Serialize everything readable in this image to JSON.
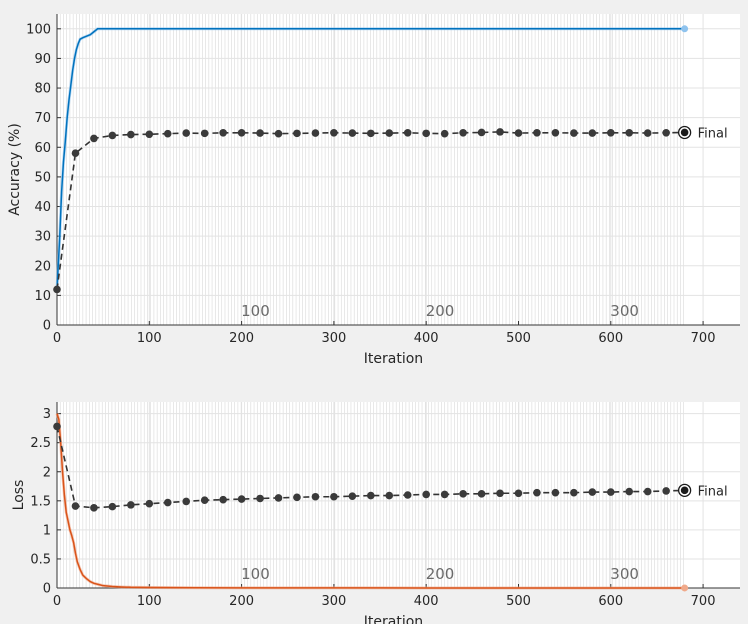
{
  "colors": {
    "accuracy": "#0072bd",
    "accuracy_light": "#8fc3ee",
    "loss": "#d95319",
    "loss_light": "#f0a98a",
    "validation": "#333333",
    "epoch_shade": "#d9d9d9"
  },
  "chart_data": [
    {
      "type": "line",
      "title": "",
      "xlabel": "Iteration",
      "ylabel": "Accuracy (%)",
      "xlim": [
        0,
        740
      ],
      "ylim": [
        0,
        105
      ],
      "grid": true,
      "xticks": [
        0,
        100,
        200,
        300,
        400,
        500,
        600,
        700
      ],
      "yticks": [
        0,
        10,
        20,
        30,
        40,
        50,
        60,
        70,
        80,
        90,
        100
      ],
      "epoch_labels": [
        {
          "x": 215,
          "text": "100"
        },
        {
          "x": 415,
          "text": "200"
        },
        {
          "x": 615,
          "text": "300"
        }
      ],
      "final_label": "Final",
      "series": [
        {
          "role": "training",
          "x": [
            0,
            3,
            5,
            7,
            9,
            11,
            13,
            15,
            17,
            19,
            21,
            23,
            25,
            28,
            32,
            36,
            40,
            44,
            50,
            100,
            200,
            300,
            400,
            500,
            600,
            680
          ],
          "y": [
            12,
            30,
            45,
            55,
            62,
            70,
            76,
            81,
            86,
            90,
            93,
            95,
            96.5,
            97,
            97.5,
            98,
            99,
            100,
            100,
            100,
            100,
            100,
            100,
            100,
            100,
            100
          ]
        },
        {
          "role": "validation",
          "x": [
            0,
            20,
            40,
            60,
            80,
            100,
            120,
            140,
            160,
            180,
            200,
            220,
            240,
            260,
            280,
            300,
            320,
            340,
            360,
            380,
            400,
            420,
            440,
            460,
            480,
            500,
            520,
            540,
            560,
            580,
            600,
            620,
            640,
            660,
            680
          ],
          "y": [
            12,
            58,
            63,
            64,
            64.3,
            64.4,
            64.6,
            64.8,
            64.7,
            64.9,
            64.9,
            64.8,
            64.6,
            64.7,
            64.8,
            64.9,
            64.8,
            64.7,
            64.8,
            64.9,
            64.7,
            64.6,
            64.9,
            65.0,
            65.2,
            64.8,
            64.9,
            64.9,
            64.8,
            64.8,
            64.9,
            64.9,
            64.8,
            64.9,
            65
          ]
        }
      ]
    },
    {
      "type": "line",
      "title": "",
      "xlabel": "Iteration",
      "ylabel": "Loss",
      "xlim": [
        0,
        740
      ],
      "ylim": [
        0,
        3.2
      ],
      "grid": true,
      "xticks": [
        0,
        100,
        200,
        300,
        400,
        500,
        600,
        700
      ],
      "yticks": [
        0,
        0.5,
        1,
        1.5,
        2,
        2.5,
        3
      ],
      "epoch_labels": [
        {
          "x": 215,
          "text": "100"
        },
        {
          "x": 415,
          "text": "200"
        },
        {
          "x": 615,
          "text": "300"
        }
      ],
      "final_label": "Final",
      "series": [
        {
          "role": "training",
          "x": [
            0,
            2,
            4,
            6,
            8,
            10,
            12,
            14,
            16,
            18,
            20,
            22,
            25,
            28,
            32,
            36,
            40,
            45,
            50,
            60,
            70,
            80,
            100,
            150,
            200,
            300,
            400,
            500,
            600,
            680
          ],
          "y": [
            3.0,
            2.9,
            2.5,
            2.0,
            1.6,
            1.3,
            1.15,
            1.0,
            0.9,
            0.78,
            0.6,
            0.45,
            0.32,
            0.22,
            0.16,
            0.11,
            0.08,
            0.06,
            0.04,
            0.025,
            0.018,
            0.012,
            0.008,
            0.005,
            0.003,
            0.002,
            0.001,
            0.001,
            0.001,
            0.001
          ]
        },
        {
          "role": "validation",
          "x": [
            0,
            20,
            40,
            60,
            80,
            100,
            120,
            140,
            160,
            180,
            200,
            220,
            240,
            260,
            280,
            300,
            320,
            340,
            360,
            380,
            400,
            420,
            440,
            460,
            480,
            500,
            520,
            540,
            560,
            580,
            600,
            620,
            640,
            660,
            680
          ],
          "y": [
            2.78,
            1.41,
            1.38,
            1.4,
            1.43,
            1.45,
            1.47,
            1.49,
            1.51,
            1.52,
            1.53,
            1.54,
            1.55,
            1.56,
            1.57,
            1.57,
            1.58,
            1.59,
            1.59,
            1.6,
            1.61,
            1.61,
            1.62,
            1.62,
            1.63,
            1.63,
            1.64,
            1.64,
            1.64,
            1.65,
            1.65,
            1.66,
            1.66,
            1.67,
            1.68
          ]
        }
      ]
    }
  ]
}
